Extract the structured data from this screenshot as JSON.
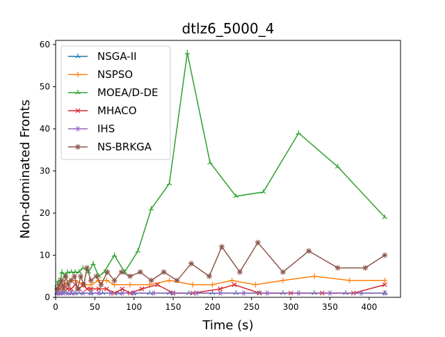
{
  "chart_data": {
    "type": "line",
    "title": "dtlz6_5000_4",
    "xlabel": "Time (s)",
    "ylabel": "Non-dominated Fronts",
    "xlim": [
      0,
      440
    ],
    "ylim": [
      0,
      61
    ],
    "xticks": [
      0,
      50,
      100,
      150,
      200,
      250,
      300,
      350,
      400
    ],
    "yticks": [
      0,
      10,
      20,
      30,
      40,
      50,
      60
    ],
    "grid": false,
    "legend_position": "top-left",
    "series": [
      {
        "name": "NSGA-II",
        "color": "#1f77b4",
        "marker": "tri",
        "points": [
          [
            2,
            1
          ],
          [
            5,
            1
          ],
          [
            8,
            1
          ],
          [
            12,
            1
          ],
          [
            20,
            1
          ],
          [
            30,
            1
          ],
          [
            45,
            1
          ],
          [
            60,
            1
          ],
          [
            80,
            1
          ],
          [
            100,
            1
          ],
          [
            120,
            1
          ],
          [
            145,
            1
          ],
          [
            170,
            1
          ],
          [
            200,
            1
          ],
          [
            230,
            1
          ],
          [
            260,
            1
          ],
          [
            290,
            1
          ],
          [
            330,
            1
          ],
          [
            370,
            1
          ],
          [
            420,
            1
          ]
        ]
      },
      {
        "name": "NSPSO",
        "color": "#ff7f0e",
        "marker": "plus",
        "points": [
          [
            2,
            2
          ],
          [
            5,
            3
          ],
          [
            8,
            3
          ],
          [
            12,
            3
          ],
          [
            18,
            4
          ],
          [
            25,
            4
          ],
          [
            35,
            3
          ],
          [
            45,
            3
          ],
          [
            55,
            4
          ],
          [
            65,
            4
          ],
          [
            75,
            3
          ],
          [
            95,
            3
          ],
          [
            120,
            3
          ],
          [
            145,
            4
          ],
          [
            175,
            3
          ],
          [
            200,
            3
          ],
          [
            225,
            4
          ],
          [
            255,
            3
          ],
          [
            290,
            4
          ],
          [
            330,
            5
          ],
          [
            375,
            4
          ],
          [
            420,
            4
          ]
        ]
      },
      {
        "name": "MOEA/D-DE",
        "color": "#2ca02c",
        "marker": "tri",
        "points": [
          [
            2,
            3
          ],
          [
            4,
            4
          ],
          [
            6,
            4
          ],
          [
            8,
            6
          ],
          [
            12,
            5
          ],
          [
            15,
            6
          ],
          [
            20,
            6
          ],
          [
            25,
            6
          ],
          [
            30,
            6
          ],
          [
            35,
            7
          ],
          [
            42,
            6
          ],
          [
            48,
            8
          ],
          [
            55,
            5
          ],
          [
            62,
            6
          ],
          [
            75,
            10
          ],
          [
            88,
            6
          ],
          [
            105,
            11
          ],
          [
            122,
            21
          ],
          [
            145,
            27
          ],
          [
            168,
            58
          ],
          [
            197,
            32
          ],
          [
            230,
            24
          ],
          [
            265,
            25
          ],
          [
            310,
            39
          ],
          [
            360,
            31
          ],
          [
            420,
            19
          ]
        ]
      },
      {
        "name": "MHACO",
        "color": "#d62728",
        "marker": "x",
        "points": [
          [
            2,
            2
          ],
          [
            5,
            2
          ],
          [
            10,
            3
          ],
          [
            15,
            2
          ],
          [
            20,
            2
          ],
          [
            25,
            3
          ],
          [
            30,
            2
          ],
          [
            35,
            3
          ],
          [
            40,
            2
          ],
          [
            45,
            2
          ],
          [
            55,
            2
          ],
          [
            65,
            2
          ],
          [
            75,
            1
          ],
          [
            85,
            2
          ],
          [
            95,
            1
          ],
          [
            110,
            2
          ],
          [
            130,
            3
          ],
          [
            150,
            1
          ],
          [
            175,
            1
          ],
          [
            210,
            2
          ],
          [
            228,
            3
          ],
          [
            260,
            1
          ],
          [
            300,
            1
          ],
          [
            340,
            1
          ],
          [
            380,
            1
          ],
          [
            420,
            3
          ]
        ]
      },
      {
        "name": "IHS",
        "color": "#9467bd",
        "marker": "star",
        "points": [
          [
            2,
            1
          ],
          [
            4,
            1
          ],
          [
            6,
            1
          ],
          [
            10,
            1
          ],
          [
            15,
            1
          ],
          [
            20,
            1
          ],
          [
            25,
            1
          ],
          [
            35,
            1
          ],
          [
            45,
            1
          ],
          [
            55,
            1
          ],
          [
            70,
            1
          ],
          [
            85,
            1
          ],
          [
            100,
            1
          ],
          [
            125,
            1
          ],
          [
            150,
            1
          ],
          [
            180,
            1
          ],
          [
            210,
            1
          ],
          [
            240,
            1
          ],
          [
            270,
            1
          ],
          [
            310,
            1
          ],
          [
            350,
            1
          ],
          [
            390,
            1
          ],
          [
            420,
            1
          ]
        ]
      },
      {
        "name": "NS-BRKGA",
        "color": "#8c564b",
        "marker": "asterisk",
        "points": [
          [
            2,
            2
          ],
          [
            5,
            3
          ],
          [
            8,
            4
          ],
          [
            10,
            2
          ],
          [
            13,
            5
          ],
          [
            16,
            3
          ],
          [
            20,
            4
          ],
          [
            24,
            5
          ],
          [
            28,
            2
          ],
          [
            32,
            5
          ],
          [
            36,
            3
          ],
          [
            40,
            7
          ],
          [
            45,
            4
          ],
          [
            52,
            5
          ],
          [
            58,
            3
          ],
          [
            66,
            6
          ],
          [
            75,
            4
          ],
          [
            84,
            6
          ],
          [
            95,
            5
          ],
          [
            108,
            6
          ],
          [
            122,
            4
          ],
          [
            138,
            6
          ],
          [
            155,
            4
          ],
          [
            173,
            8
          ],
          [
            196,
            5
          ],
          [
            212,
            12
          ],
          [
            235,
            6
          ],
          [
            258,
            13
          ],
          [
            290,
            6
          ],
          [
            323,
            11
          ],
          [
            360,
            7
          ],
          [
            395,
            7
          ],
          [
            420,
            10
          ]
        ]
      }
    ]
  }
}
